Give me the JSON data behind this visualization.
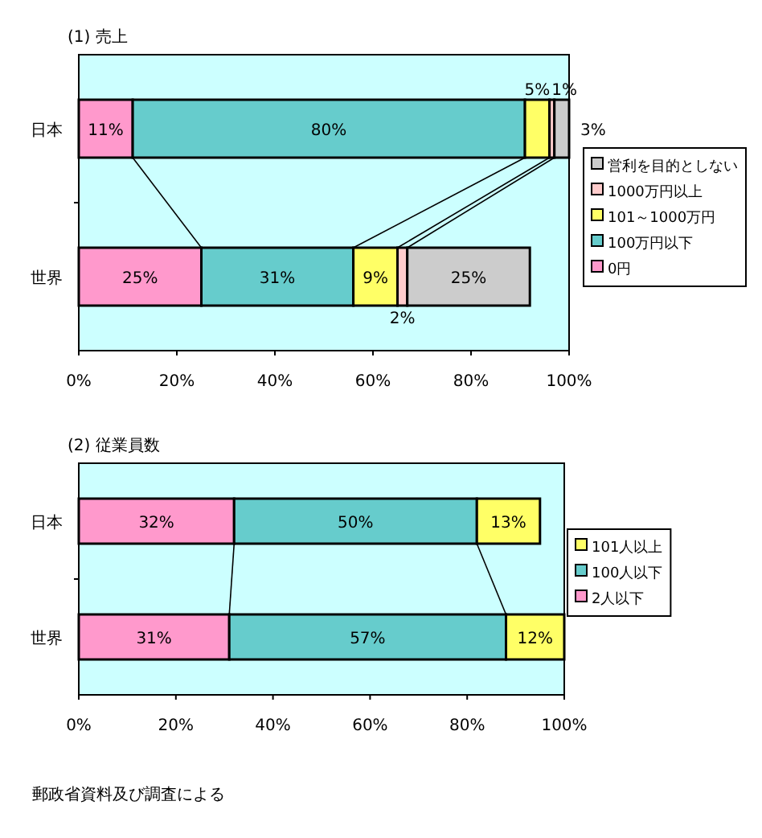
{
  "chart_data": [
    {
      "type": "bar",
      "orientation": "horizontal",
      "stacked": true,
      "title": "(1) 売上",
      "categories": [
        "日本",
        "世界"
      ],
      "legend": "right",
      "xlim": [
        0,
        100
      ],
      "xticks": [
        {
          "value": 0,
          "label": "0%"
        },
        {
          "value": 20,
          "label": "20%"
        },
        {
          "value": 40,
          "label": "40%"
        },
        {
          "value": 60,
          "label": "60%"
        },
        {
          "value": 80,
          "label": "80%"
        },
        {
          "value": 100,
          "label": "100%"
        }
      ],
      "series": [
        {
          "name": "0円",
          "color": "#ff99cc",
          "values": [
            11,
            25
          ],
          "value_labels": [
            "11%",
            "25%"
          ]
        },
        {
          "name": "100万円以下",
          "color": "#66cccc",
          "values": [
            80,
            31
          ],
          "value_labels": [
            "80%",
            "31%"
          ]
        },
        {
          "name": "101～1000万円",
          "color": "#ffff66",
          "values": [
            5,
            9
          ],
          "value_labels": [
            "5%",
            "9%"
          ]
        },
        {
          "name": "1000万円以上",
          "color": "#ffcccc",
          "values": [
            1,
            2
          ],
          "value_labels": [
            "1%",
            "2%"
          ]
        },
        {
          "name": "営利を目的としない",
          "color": "#cccccc",
          "values": [
            3,
            25
          ],
          "value_labels": [
            "3%",
            "25%"
          ]
        }
      ]
    },
    {
      "type": "bar",
      "orientation": "horizontal",
      "stacked": true,
      "title": "(2) 従業員数",
      "categories": [
        "日本",
        "世界"
      ],
      "legend": "right",
      "xlim": [
        0,
        100
      ],
      "xticks": [
        {
          "value": 0,
          "label": "0%"
        },
        {
          "value": 20,
          "label": "20%"
        },
        {
          "value": 40,
          "label": "40%"
        },
        {
          "value": 60,
          "label": "60%"
        },
        {
          "value": 80,
          "label": "80%"
        },
        {
          "value": 100,
          "label": "100%"
        }
      ],
      "annotations": [
        "郵政省資料及び調査による"
      ],
      "series": [
        {
          "name": "2人以下",
          "color": "#ff99cc",
          "values": [
            32,
            31
          ],
          "value_labels": [
            "32%",
            "31%"
          ]
        },
        {
          "name": "100人以下",
          "color": "#66cccc",
          "values": [
            50,
            57
          ],
          "value_labels": [
            "50%",
            "57%"
          ]
        },
        {
          "name": "101人以上",
          "color": "#ffff66",
          "values": [
            13,
            12
          ],
          "value_labels": [
            "13%",
            "12%"
          ]
        }
      ]
    }
  ]
}
